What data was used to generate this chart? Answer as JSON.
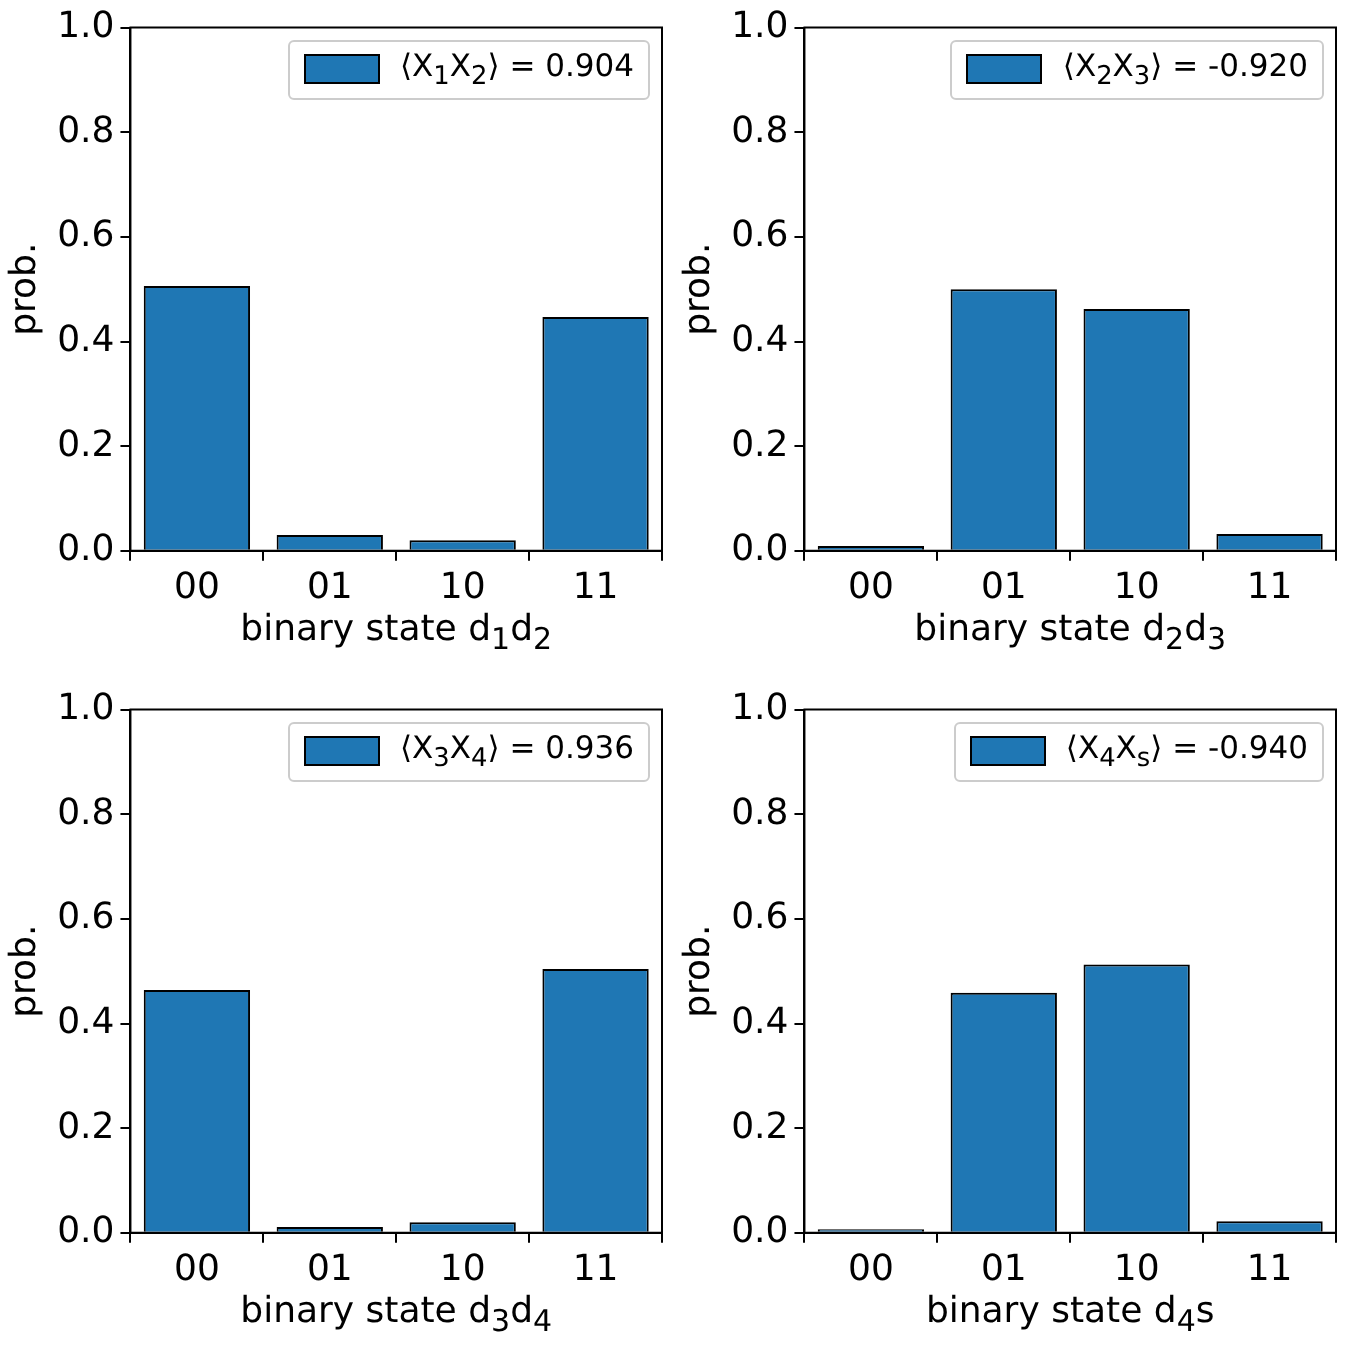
{
  "chart_data": [
    {
      "type": "bar",
      "categories": [
        "00",
        "01",
        "10",
        "11"
      ],
      "series": [
        {
          "name": "⟨X$_{1}$X$_{2}$⟩ = 0.904",
          "color": "#1f77b4",
          "values": [
            0.506,
            0.03,
            0.02,
            0.447
          ]
        }
      ],
      "xlabel": "binary state d$_{1}$d$_{2}$",
      "ylabel": "prob.",
      "ylim": [
        0,
        1
      ],
      "yticks": [
        {
          "value": 0,
          "label": "0.0"
        },
        {
          "value": 0.2,
          "label": "0.2"
        },
        {
          "value": 0.4,
          "label": "0.4"
        },
        {
          "value": 0.6,
          "label": "0.6"
        },
        {
          "value": 0.8,
          "label": "0.8"
        },
        {
          "value": 1,
          "label": "1.0"
        }
      ],
      "legend": "top right",
      "grid": false
    },
    {
      "type": "bar",
      "categories": [
        "00",
        "01",
        "10",
        "11"
      ],
      "series": [
        {
          "name": "⟨X$_{2}$X$_{3}$⟩ = -0.920",
          "color": "#1f77b4",
          "values": [
            0.009,
            0.5,
            0.462,
            0.032
          ]
        }
      ],
      "xlabel": "binary state d$_{2}$d$_{3}$",
      "ylabel": "prob.",
      "ylim": [
        0,
        1
      ],
      "yticks": [
        {
          "value": 0,
          "label": "0.0"
        },
        {
          "value": 0.2,
          "label": "0.2"
        },
        {
          "value": 0.4,
          "label": "0.4"
        },
        {
          "value": 0.6,
          "label": "0.6"
        },
        {
          "value": 0.8,
          "label": "0.8"
        },
        {
          "value": 1,
          "label": "1.0"
        }
      ],
      "legend": "top right",
      "grid": false
    },
    {
      "type": "bar",
      "categories": [
        "00",
        "01",
        "10",
        "11"
      ],
      "series": [
        {
          "name": "⟨X$_{3}$X$_{4}$⟩ = 0.936",
          "color": "#1f77b4",
          "values": [
            0.464,
            0.011,
            0.02,
            0.504
          ]
        }
      ],
      "xlabel": "binary state d$_{3}$d$_{4}$",
      "ylabel": "prob.",
      "ylim": [
        0,
        1
      ],
      "yticks": [
        {
          "value": 0,
          "label": "0.0"
        },
        {
          "value": 0.2,
          "label": "0.2"
        },
        {
          "value": 0.4,
          "label": "0.4"
        },
        {
          "value": 0.6,
          "label": "0.6"
        },
        {
          "value": 0.8,
          "label": "0.8"
        },
        {
          "value": 1,
          "label": "1.0"
        }
      ],
      "legend": "top right",
      "grid": false
    },
    {
      "type": "bar",
      "categories": [
        "00",
        "01",
        "10",
        "11"
      ],
      "series": [
        {
          "name": "⟨X$_{4}$X$_{s}$⟩ = -0.940",
          "color": "#1f77b4",
          "values": [
            0.007,
            0.459,
            0.513,
            0.022
          ]
        }
      ],
      "xlabel": "binary state d$_{4}$s",
      "ylabel": "prob.",
      "ylim": [
        0,
        1
      ],
      "yticks": [
        {
          "value": 0,
          "label": "0.0"
        },
        {
          "value": 0.2,
          "label": "0.2"
        },
        {
          "value": 0.4,
          "label": "0.4"
        },
        {
          "value": 0.6,
          "label": "0.6"
        },
        {
          "value": 0.8,
          "label": "0.8"
        },
        {
          "value": 1,
          "label": "1.0"
        }
      ],
      "legend": "top right",
      "grid": false
    }
  ]
}
